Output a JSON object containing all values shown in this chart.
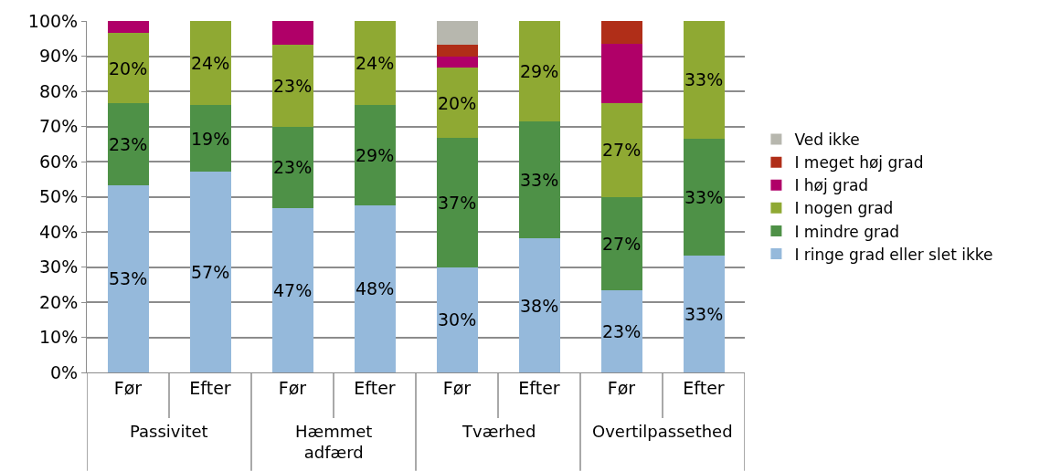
{
  "chart_data": {
    "type": "bar",
    "stacked": true,
    "categories": [
      "Før",
      "Efter",
      "Før",
      "Efter",
      "Før",
      "Efter",
      "Før",
      "Efter"
    ],
    "annotations": [
      "Passivitet",
      "Hæmmet\nadfærd",
      "Tværhed",
      "Overtilpassethed"
    ],
    "series": [
      {
        "name": "I ringe grad eller slet ikke",
        "color": "#95b9db",
        "values": [
          53.3,
          57.1,
          46.7,
          47.6,
          30,
          38.1,
          23.3,
          33.3
        ],
        "value_labels": [
          "53%",
          "57%",
          "47%",
          "48%",
          "30%",
          "38%",
          "23%",
          "33%"
        ]
      },
      {
        "name": "I mindre grad",
        "color": "#4e9147",
        "values": [
          23.3,
          19,
          23.3,
          28.6,
          36.7,
          33.3,
          26.7,
          33.3
        ],
        "value_labels": [
          "23%",
          "19%",
          "23%",
          "29%",
          "37%",
          "33%",
          "27%",
          "33%"
        ]
      },
      {
        "name": "I nogen grad",
        "color": "#8fa933",
        "values": [
          20,
          23.8,
          23.3,
          23.8,
          20,
          28.6,
          26.7,
          33.3
        ],
        "value_labels": [
          "20%",
          "24%",
          "23%",
          "24%",
          "20%",
          "29%",
          "27%",
          "33%"
        ]
      },
      {
        "name": "I høj grad",
        "color": "#b00068",
        "values": [
          3.3,
          0,
          6.7,
          0,
          3.3,
          0,
          16.7,
          0
        ]
      },
      {
        "name": "I meget høj grad",
        "color": "#b02e18",
        "values": [
          0,
          0,
          0,
          0,
          3.3,
          0,
          6.6,
          0
        ]
      },
      {
        "name": "Ved ikke",
        "color": "#b7b7ae",
        "values": [
          0,
          0,
          0,
          0,
          6.7,
          0,
          0,
          0
        ]
      }
    ],
    "ylim": [
      0,
      100
    ],
    "yticks": [
      {
        "value": 0,
        "label": "0%"
      },
      {
        "value": 10,
        "label": "10%"
      },
      {
        "value": 20,
        "label": "20%"
      },
      {
        "value": 30,
        "label": "30%"
      },
      {
        "value": 40,
        "label": "40%"
      },
      {
        "value": 50,
        "label": "50%"
      },
      {
        "value": 60,
        "label": "60%"
      },
      {
        "value": 70,
        "label": "70%"
      },
      {
        "value": 80,
        "label": "80%"
      },
      {
        "value": 90,
        "label": "90%"
      },
      {
        "value": 100,
        "label": "100%"
      }
    ],
    "grid": "y",
    "legend": "right"
  }
}
